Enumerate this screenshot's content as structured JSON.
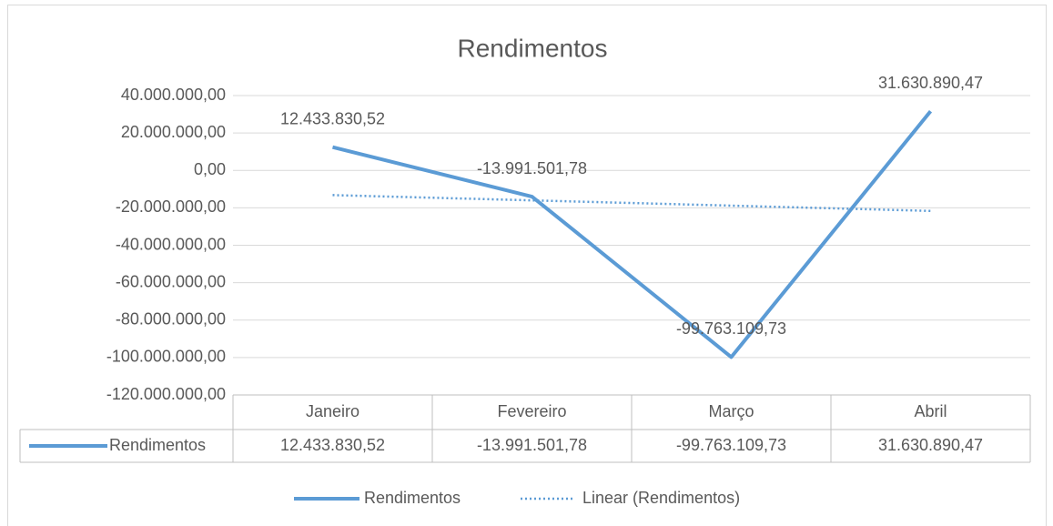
{
  "chart_data": {
    "type": "line",
    "title": "Rendimentos",
    "categories": [
      "Janeiro",
      "Fevereiro",
      "Março",
      "Abril"
    ],
    "series": [
      {
        "name": "Rendimentos",
        "color": "#5b9bd5",
        "values": [
          12433830.52,
          -13991501.78,
          -99763109.73,
          31630890.47
        ],
        "value_labels": [
          "12.433.830,52",
          "-13.991.501,78",
          "-99.763.109,73",
          "31.630.890,47"
        ]
      }
    ],
    "trendline": {
      "name": "Linear (Rendimentos)",
      "type": "linear",
      "color": "#5b9bd5"
    },
    "ylim": [
      -120000000,
      40000000
    ],
    "yticks": [
      {
        "value": 40000000,
        "label": "40.000.000,00"
      },
      {
        "value": 20000000,
        "label": "20.000.000,00"
      },
      {
        "value": 0,
        "label": "0,00"
      },
      {
        "value": -20000000,
        "label": "-20.000.000,00"
      },
      {
        "value": -40000000,
        "label": "-40.000.000,00"
      },
      {
        "value": -60000000,
        "label": "-60.000.000,00"
      },
      {
        "value": -80000000,
        "label": "-80.000.000,00"
      },
      {
        "value": -100000000,
        "label": "-100.000.000,00"
      },
      {
        "value": -120000000,
        "label": "-120.000.000,00"
      }
    ],
    "grid": true,
    "data_table": true,
    "legend": "bottom"
  }
}
